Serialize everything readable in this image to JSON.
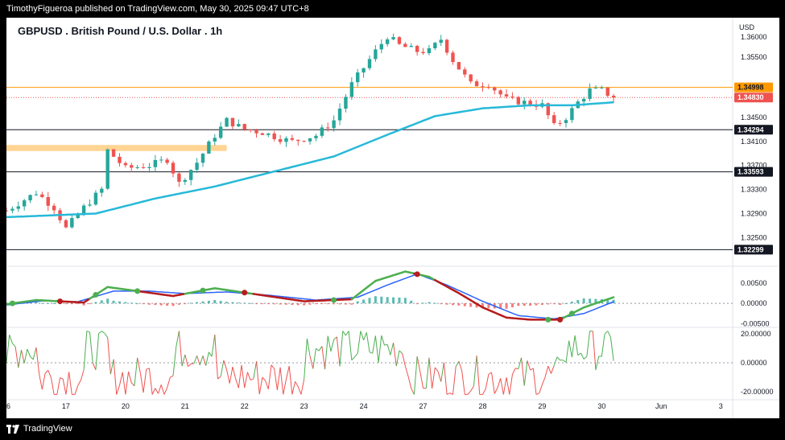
{
  "header": {
    "publisher": "TimothyFigueroa published on TradingView.com, May 30, 2025 09:47 UTC+8"
  },
  "footer": {
    "brand": "TradingView"
  },
  "colors": {
    "up": "#26a69a",
    "down": "#ef5350",
    "ma": "#26b9d8",
    "green": "#4caf50",
    "red": "#b71c1c",
    "blue": "#2962ff",
    "orange": "#ff9800"
  },
  "chart_data": {
    "type": "candlestick",
    "title": "GBPUSD . British Pound / U.S. Dollar . 1h",
    "currency": "USD",
    "ylim": [
      1.3205,
      1.3605
    ],
    "y_ticks": [
      "1.35500",
      "1.34500",
      "1.34100",
      "1.33700",
      "1.33300",
      "1.32900",
      "1.32500"
    ],
    "y_tick_values": [
      1.355,
      1.345,
      1.341,
      1.337,
      1.333,
      1.329,
      1.325
    ],
    "top_clipped_label": "1.36000",
    "x_ticks": [
      "6",
      "17",
      "20",
      "21",
      "22",
      "23",
      "24",
      "27",
      "28",
      "29",
      "30",
      "Jun",
      "3"
    ],
    "x_tick_index": [
      0,
      10,
      20,
      30,
      40,
      50,
      60,
      70,
      80,
      90,
      100,
      110,
      120
    ],
    "x_domain": [
      0,
      122
    ],
    "horizontal_levels": [
      {
        "label": "1.34998",
        "value": 1.34998,
        "style": "orange-line"
      },
      {
        "label": "1.34830",
        "value": 1.3483,
        "style": "current-price"
      },
      {
        "label": "1.34294",
        "value": 1.34294,
        "style": "black-line"
      },
      {
        "label": "1.33593",
        "value": 1.33593,
        "style": "black-line"
      },
      {
        "label": "1.32299",
        "value": 1.32299,
        "style": "black-line"
      }
    ],
    "zone": {
      "from_index": 0,
      "to_index": 37,
      "low": 1.3394,
      "high": 1.34
    },
    "close_anchors": [
      [
        0,
        1.3295
      ],
      [
        5,
        1.3325
      ],
      [
        8,
        1.33
      ],
      [
        10,
        1.3265
      ],
      [
        13,
        1.33
      ],
      [
        16,
        1.333
      ],
      [
        17,
        1.3395
      ],
      [
        20,
        1.3365
      ],
      [
        24,
        1.337
      ],
      [
        27,
        1.338
      ],
      [
        29,
        1.334
      ],
      [
        32,
        1.3375
      ],
      [
        35,
        1.342
      ],
      [
        37,
        1.3445
      ],
      [
        40,
        1.343
      ],
      [
        43,
        1.3425
      ],
      [
        46,
        1.3415
      ],
      [
        48,
        1.341
      ],
      [
        52,
        1.342
      ],
      [
        55,
        1.3445
      ],
      [
        58,
        1.3505
      ],
      [
        62,
        1.356
      ],
      [
        64,
        1.3585
      ],
      [
        66,
        1.357
      ],
      [
        69,
        1.356
      ],
      [
        71,
        1.356
      ],
      [
        73,
        1.358
      ],
      [
        75,
        1.3545
      ],
      [
        78,
        1.3505
      ],
      [
        81,
        1.3505
      ],
      [
        84,
        1.348
      ],
      [
        87,
        1.3475
      ],
      [
        90,
        1.347
      ],
      [
        92,
        1.3435
      ],
      [
        94,
        1.345
      ],
      [
        96,
        1.3475
      ],
      [
        98,
        1.3495
      ],
      [
        100,
        1.3495
      ],
      [
        102,
        1.3483
      ]
    ],
    "ma_anchors": [
      [
        0,
        1.3284
      ],
      [
        15,
        1.329
      ],
      [
        25,
        1.3315
      ],
      [
        35,
        1.3335
      ],
      [
        45,
        1.336
      ],
      [
        55,
        1.3385
      ],
      [
        65,
        1.3425
      ],
      [
        72,
        1.3452
      ],
      [
        80,
        1.3465
      ],
      [
        88,
        1.347
      ],
      [
        95,
        1.347
      ],
      [
        102,
        1.3475
      ]
    ],
    "macd": {
      "y_ticks": [
        "0.00500",
        "0.00000",
        "-0.00500"
      ],
      "y_tick_values": [
        0.005,
        0.0,
        -0.005
      ],
      "ylim": [
        -0.0055,
        0.0085
      ],
      "macd_anchors": [
        [
          0,
          -0.0002
        ],
        [
          5,
          0.0008
        ],
        [
          9,
          0.0005
        ],
        [
          13,
          0.0002
        ],
        [
          17,
          0.004
        ],
        [
          22,
          0.003
        ],
        [
          28,
          0.0018
        ],
        [
          35,
          0.0037
        ],
        [
          42,
          0.0022
        ],
        [
          50,
          0.0005
        ],
        [
          58,
          0.001
        ],
        [
          62,
          0.0055
        ],
        [
          67,
          0.0078
        ],
        [
          71,
          0.0065
        ],
        [
          76,
          0.0025
        ],
        [
          80,
          -0.001
        ],
        [
          84,
          -0.0035
        ],
        [
          88,
          -0.004
        ],
        [
          93,
          -0.004
        ],
        [
          97,
          -0.001
        ],
        [
          102,
          0.0015
        ]
      ],
      "signal_anchors": [
        [
          0,
          -0.0004
        ],
        [
          6,
          0.0006
        ],
        [
          12,
          0.0004
        ],
        [
          18,
          0.003
        ],
        [
          24,
          0.003
        ],
        [
          30,
          0.0024
        ],
        [
          37,
          0.0028
        ],
        [
          44,
          0.002
        ],
        [
          52,
          0.0008
        ],
        [
          59,
          0.0015
        ],
        [
          64,
          0.0045
        ],
        [
          69,
          0.0072
        ],
        [
          74,
          0.0045
        ],
        [
          80,
          0.0005
        ],
        [
          86,
          -0.003
        ],
        [
          92,
          -0.0038
        ],
        [
          97,
          -0.0025
        ],
        [
          102,
          0.0004
        ]
      ],
      "cross_points": [
        {
          "x": 1,
          "dir": "up"
        },
        {
          "x": 9,
          "dir": "down"
        },
        {
          "x": 15,
          "dir": "up"
        },
        {
          "x": 22,
          "dir": "up"
        },
        {
          "x": 33,
          "dir": "up"
        },
        {
          "x": 40,
          "dir": "down"
        },
        {
          "x": 55,
          "dir": "up"
        },
        {
          "x": 69,
          "dir": "down"
        },
        {
          "x": 91,
          "dir": "up"
        },
        {
          "x": 93,
          "dir": "down"
        },
        {
          "x": 95,
          "dir": "up"
        }
      ]
    },
    "oscillator": {
      "y_ticks": [
        "20.00000",
        "0.00000",
        "-20.00000"
      ],
      "y_tick_values": [
        20,
        0,
        -20
      ],
      "ylim": [
        -24,
        24
      ]
    }
  }
}
